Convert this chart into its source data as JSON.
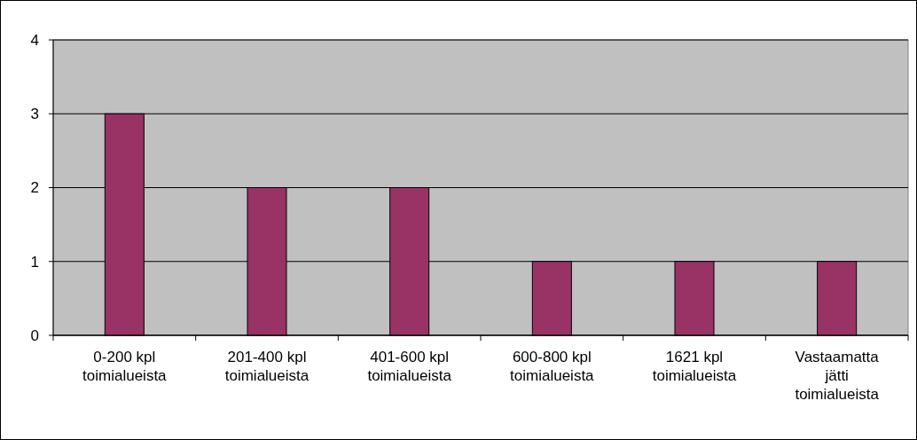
{
  "chart_data": {
    "type": "bar",
    "categories": [
      "0-200 kpl toimialueista",
      "201-400 kpl toimialueista",
      "401-600 kpl toimialueista",
      "600-800 kpl toimialueista",
      "1621 kpl toimialueista",
      "Vastaamatta jätti toimialueista"
    ],
    "values": [
      3,
      2,
      2,
      1,
      1,
      1
    ],
    "color": "#993366",
    "ylim": [
      0,
      4
    ],
    "yticks": [
      0,
      1,
      2,
      3,
      4
    ],
    "grid": "y"
  }
}
